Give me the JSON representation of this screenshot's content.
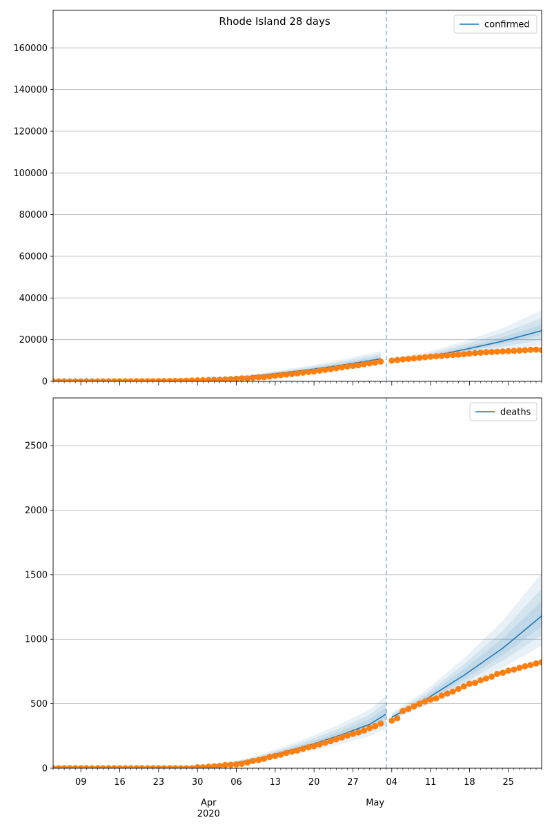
{
  "chart_data": {
    "title": "Rhode Island 28 days",
    "type": "line",
    "x_range": [
      "2020-03-04",
      "2020-05-31"
    ],
    "forecast_start": "2020-05-03",
    "x_ticks": {
      "day_labels": [
        {
          "date": "2020-03-09",
          "label": "09"
        },
        {
          "date": "2020-03-16",
          "label": "16"
        },
        {
          "date": "2020-03-23",
          "label": "23"
        },
        {
          "date": "2020-03-30",
          "label": "30"
        },
        {
          "date": "2020-04-06",
          "label": "06"
        },
        {
          "date": "2020-04-13",
          "label": "13"
        },
        {
          "date": "2020-04-20",
          "label": "20"
        },
        {
          "date": "2020-04-27",
          "label": "27"
        },
        {
          "date": "2020-05-04",
          "label": "04"
        },
        {
          "date": "2020-05-11",
          "label": "11"
        },
        {
          "date": "2020-05-18",
          "label": "18"
        },
        {
          "date": "2020-05-25",
          "label": "25"
        }
      ],
      "month_labels": [
        {
          "date": "2020-04-01",
          "label": "Apr",
          "sublabel": "2020"
        },
        {
          "date": "2020-05-01",
          "label": "May",
          "sublabel": ""
        }
      ]
    },
    "panels": [
      {
        "legend": "confirmed",
        "ylim": [
          0,
          178000
        ],
        "yticks": [
          0,
          20000,
          40000,
          60000,
          80000,
          100000,
          120000,
          140000,
          160000
        ],
        "grid": true,
        "legend_placement": "top-right",
        "observed_dates": [
          "2020-03-04",
          "2020-03-05",
          "2020-03-06",
          "2020-03-07",
          "2020-03-08",
          "2020-03-09",
          "2020-03-10",
          "2020-03-11",
          "2020-03-12",
          "2020-03-13",
          "2020-03-14",
          "2020-03-15",
          "2020-03-16",
          "2020-03-17",
          "2020-03-18",
          "2020-03-19",
          "2020-03-20",
          "2020-03-21",
          "2020-03-22",
          "2020-03-23",
          "2020-03-24",
          "2020-03-25",
          "2020-03-26",
          "2020-03-27",
          "2020-03-28",
          "2020-03-29",
          "2020-03-30",
          "2020-03-31",
          "2020-04-01",
          "2020-04-02",
          "2020-04-03",
          "2020-04-04",
          "2020-04-05",
          "2020-04-06",
          "2020-04-07",
          "2020-04-08",
          "2020-04-09",
          "2020-04-10",
          "2020-04-11",
          "2020-04-12",
          "2020-04-13",
          "2020-04-14",
          "2020-04-15",
          "2020-04-16",
          "2020-04-17",
          "2020-04-18",
          "2020-04-19",
          "2020-04-20",
          "2020-04-21",
          "2020-04-22",
          "2020-04-23",
          "2020-04-24",
          "2020-04-25",
          "2020-04-26",
          "2020-04-27",
          "2020-04-28",
          "2020-04-29",
          "2020-04-30",
          "2020-05-01",
          "2020-05-02",
          "2020-05-04",
          "2020-05-05",
          "2020-05-06",
          "2020-05-07",
          "2020-05-08",
          "2020-05-09",
          "2020-05-10",
          "2020-05-11",
          "2020-05-12",
          "2020-05-13",
          "2020-05-14",
          "2020-05-15",
          "2020-05-16",
          "2020-05-17",
          "2020-05-18",
          "2020-05-19",
          "2020-05-20",
          "2020-05-21",
          "2020-05-22",
          "2020-05-23",
          "2020-05-24",
          "2020-05-25",
          "2020-05-26",
          "2020-05-27",
          "2020-05-28",
          "2020-05-29",
          "2020-05-30",
          "2020-05-31"
        ],
        "observed": [
          2,
          2,
          3,
          3,
          3,
          4,
          5,
          5,
          5,
          14,
          20,
          21,
          23,
          33,
          44,
          54,
          66,
          83,
          106,
          124,
          132,
          165,
          203,
          239,
          294,
          408,
          488,
          566,
          657,
          711,
          806,
          922,
          1082,
          1229,
          1450,
          1414,
          1727,
          1949,
          2015,
          2349,
          2665,
          2976,
          3251,
          3529,
          3837,
          4177,
          4491,
          4706,
          5090,
          5500,
          5841,
          6256,
          6699,
          7129,
          7439,
          7708,
          8247,
          8621,
          8962,
          9477,
          9933,
          10205,
          10530,
          10779,
          11018,
          11274,
          11614,
          11835,
          12016,
          12219,
          12434,
          12674,
          12795,
          13022,
          13356,
          13571,
          13736,
          13952,
          14065,
          14210,
          14352,
          14494,
          14634,
          14777,
          14928,
          15112,
          15219,
          15000
        ],
        "fit_dates": [
          "2020-03-04",
          "2020-03-10",
          "2020-03-17",
          "2020-03-24",
          "2020-03-28",
          "2020-04-01",
          "2020-04-05",
          "2020-04-10",
          "2020-04-15",
          "2020-04-20",
          "2020-04-25",
          "2020-05-02"
        ],
        "fit": [
          0,
          20,
          80,
          200,
          400,
          800,
          1500,
          2800,
          4300,
          5900,
          7800,
          10800
        ],
        "forecast_dates": [
          "2020-05-04",
          "2020-05-10",
          "2020-05-17",
          "2020-05-24",
          "2020-05-31"
        ],
        "forecast": [
          10300,
          11500,
          15200,
          19300,
          24300
        ],
        "forecast_band_widths": [
          0.12,
          0.25,
          0.4
        ]
      },
      {
        "legend": "deaths",
        "ylim": [
          0,
          2870
        ],
        "yticks": [
          0,
          500,
          1000,
          1500,
          2000,
          2500
        ],
        "grid": true,
        "legend_placement": "top-right",
        "observed_dates": [
          "2020-03-04",
          "2020-03-05",
          "2020-03-06",
          "2020-03-07",
          "2020-03-08",
          "2020-03-09",
          "2020-03-10",
          "2020-03-11",
          "2020-03-12",
          "2020-03-13",
          "2020-03-14",
          "2020-03-15",
          "2020-03-16",
          "2020-03-17",
          "2020-03-18",
          "2020-03-19",
          "2020-03-20",
          "2020-03-21",
          "2020-03-22",
          "2020-03-23",
          "2020-03-24",
          "2020-03-25",
          "2020-03-26",
          "2020-03-27",
          "2020-03-28",
          "2020-03-29",
          "2020-03-30",
          "2020-03-31",
          "2020-04-01",
          "2020-04-02",
          "2020-04-03",
          "2020-04-04",
          "2020-04-05",
          "2020-04-06",
          "2020-04-07",
          "2020-04-08",
          "2020-04-09",
          "2020-04-10",
          "2020-04-11",
          "2020-04-12",
          "2020-04-13",
          "2020-04-14",
          "2020-04-15",
          "2020-04-16",
          "2020-04-17",
          "2020-04-18",
          "2020-04-19",
          "2020-04-20",
          "2020-04-21",
          "2020-04-22",
          "2020-04-23",
          "2020-04-24",
          "2020-04-25",
          "2020-04-26",
          "2020-04-27",
          "2020-04-28",
          "2020-04-29",
          "2020-04-30",
          "2020-05-01",
          "2020-05-02",
          "2020-05-04",
          "2020-05-05",
          "2020-05-06",
          "2020-05-07",
          "2020-05-08",
          "2020-05-09",
          "2020-05-10",
          "2020-05-11",
          "2020-05-12",
          "2020-05-13",
          "2020-05-14",
          "2020-05-15",
          "2020-05-16",
          "2020-05-17",
          "2020-05-18",
          "2020-05-19",
          "2020-05-20",
          "2020-05-21",
          "2020-05-22",
          "2020-05-23",
          "2020-05-24",
          "2020-05-25",
          "2020-05-26",
          "2020-05-27",
          "2020-05-28",
          "2020-05-29",
          "2020-05-30",
          "2020-05-31"
        ],
        "observed": [
          0,
          0,
          0,
          0,
          0,
          0,
          0,
          0,
          0,
          0,
          0,
          0,
          0,
          0,
          0,
          0,
          0,
          0,
          0,
          0,
          0,
          0,
          0,
          0,
          0,
          0,
          8,
          8,
          12,
          14,
          17,
          25,
          27,
          30,
          35,
          44,
          56,
          63,
          73,
          87,
          95,
          105,
          118,
          128,
          137,
          150,
          163,
          171,
          184,
          197,
          210,
          225,
          239,
          254,
          266,
          278,
          292,
          311,
          326,
          346,
          369,
          387,
          444,
          459,
          480,
          499,
          517,
          532,
          541,
          563,
          579,
          594,
          614,
          634,
          655,
          661,
          681,
          695,
          710,
          731,
          740,
          756,
          764,
          778,
          790,
          800,
          812,
          822
        ],
        "fit_dates": [
          "2020-03-04",
          "2020-03-20",
          "2020-03-28",
          "2020-04-01",
          "2020-04-05",
          "2020-04-10",
          "2020-04-15",
          "2020-04-20",
          "2020-04-25",
          "2020-04-30",
          "2020-05-03"
        ],
        "fit": [
          0,
          2,
          8,
          18,
          35,
          75,
          130,
          190,
          260,
          340,
          420
        ],
        "forecast_dates": [
          "2020-05-04",
          "2020-05-10",
          "2020-05-17",
          "2020-05-24",
          "2020-05-31"
        ],
        "forecast": [
          395,
          530,
          720,
          930,
          1180
        ],
        "forecast_band_widths": [
          0.1,
          0.18,
          0.28
        ]
      }
    ]
  },
  "colors": {
    "line": "#1f77b4",
    "observed": "#ff7f0e",
    "band": "#1f77b4",
    "grid": "#b0b0b0",
    "vline": "#1f77b4"
  }
}
